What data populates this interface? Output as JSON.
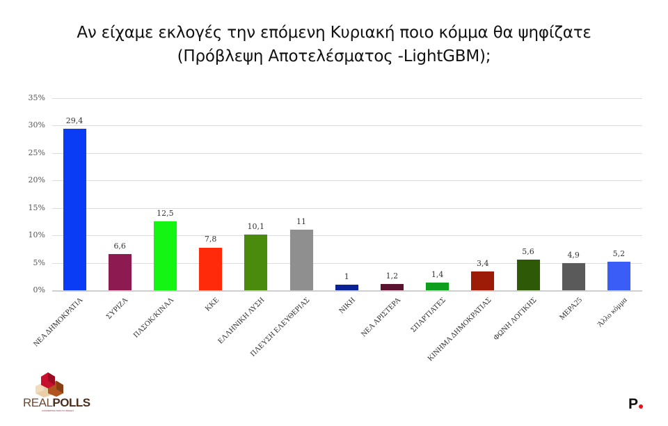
{
  "chart_data": {
    "type": "bar",
    "title": "Αν είχαμε εκλογές την επόμενη Κυριακή ποιο κόμμα θα ψηφίζατε (Πρόβλεψη Αποτελέσματος -LightGBM);",
    "title_lines": [
      "Αν είχαμε εκλογές την επόμενη Κυριακή ποιο κόμμα θα ψηφίζατε",
      "(Πρόβλεψη Αποτελέσματος -LightGBM);"
    ],
    "xlabel": "",
    "ylabel": "",
    "ylim": [
      0,
      35
    ],
    "yticks": [
      "0%",
      "5%",
      "10%",
      "15%",
      "20%",
      "25%",
      "30%",
      "35%"
    ],
    "grid": true,
    "legend": "none",
    "categories": [
      "ΝΕΑ ΔΗΜΟΚΡΑΤΙΑ",
      "ΣΥΡΙΖΑ",
      "ΠΑΣΟΚ/ΚΙΝΑΛ",
      "ΚΚΕ",
      "ΕΛΛΗΝΙΚΗ ΛΥΣΗ",
      "ΠΛΕΥΣΗ ΕΛΕΥΘΕΡΙΑΣ",
      "ΝΙΚΗ",
      "ΝΕΑ ΑΡΙΣΤΕΡΑ",
      "ΣΠΑΡΤΙΑΤΕΣ",
      "ΚΙΝΗΜΑ ΔΗΜΟΚΡΑΤΙΑΣ",
      "ΦΩΝΗ ΛΟΓΙΚΗΣ",
      "ΜΕΡΑ25",
      "Άλλο κόμμα"
    ],
    "values": [
      29.4,
      6.6,
      12.5,
      7.8,
      10.1,
      11,
      1,
      1.2,
      1.4,
      3.4,
      5.6,
      4.9,
      5.2
    ],
    "value_labels": [
      "29,4",
      "6,6",
      "12,5",
      "7,8",
      "10,1",
      "11",
      "1",
      "1,2",
      "1,4",
      "3,4",
      "5,6",
      "4,9",
      "5,2"
    ],
    "colors": [
      "#0a3cf5",
      "#8e1a52",
      "#14f514",
      "#ff2a0a",
      "#4a8a0c",
      "#8f8f8f",
      "#0b2196",
      "#5b1430",
      "#0f9e1e",
      "#9c1c08",
      "#2e5a08",
      "#5a5a5a",
      "#3a5cf7"
    ]
  },
  "branding": {
    "left_logo": {
      "word_light": "REAL",
      "word_bold": "POLLS",
      "tagline": "CONVERTING DATA TO INSIGHT"
    },
    "right_logo": {
      "letter": "P"
    }
  }
}
